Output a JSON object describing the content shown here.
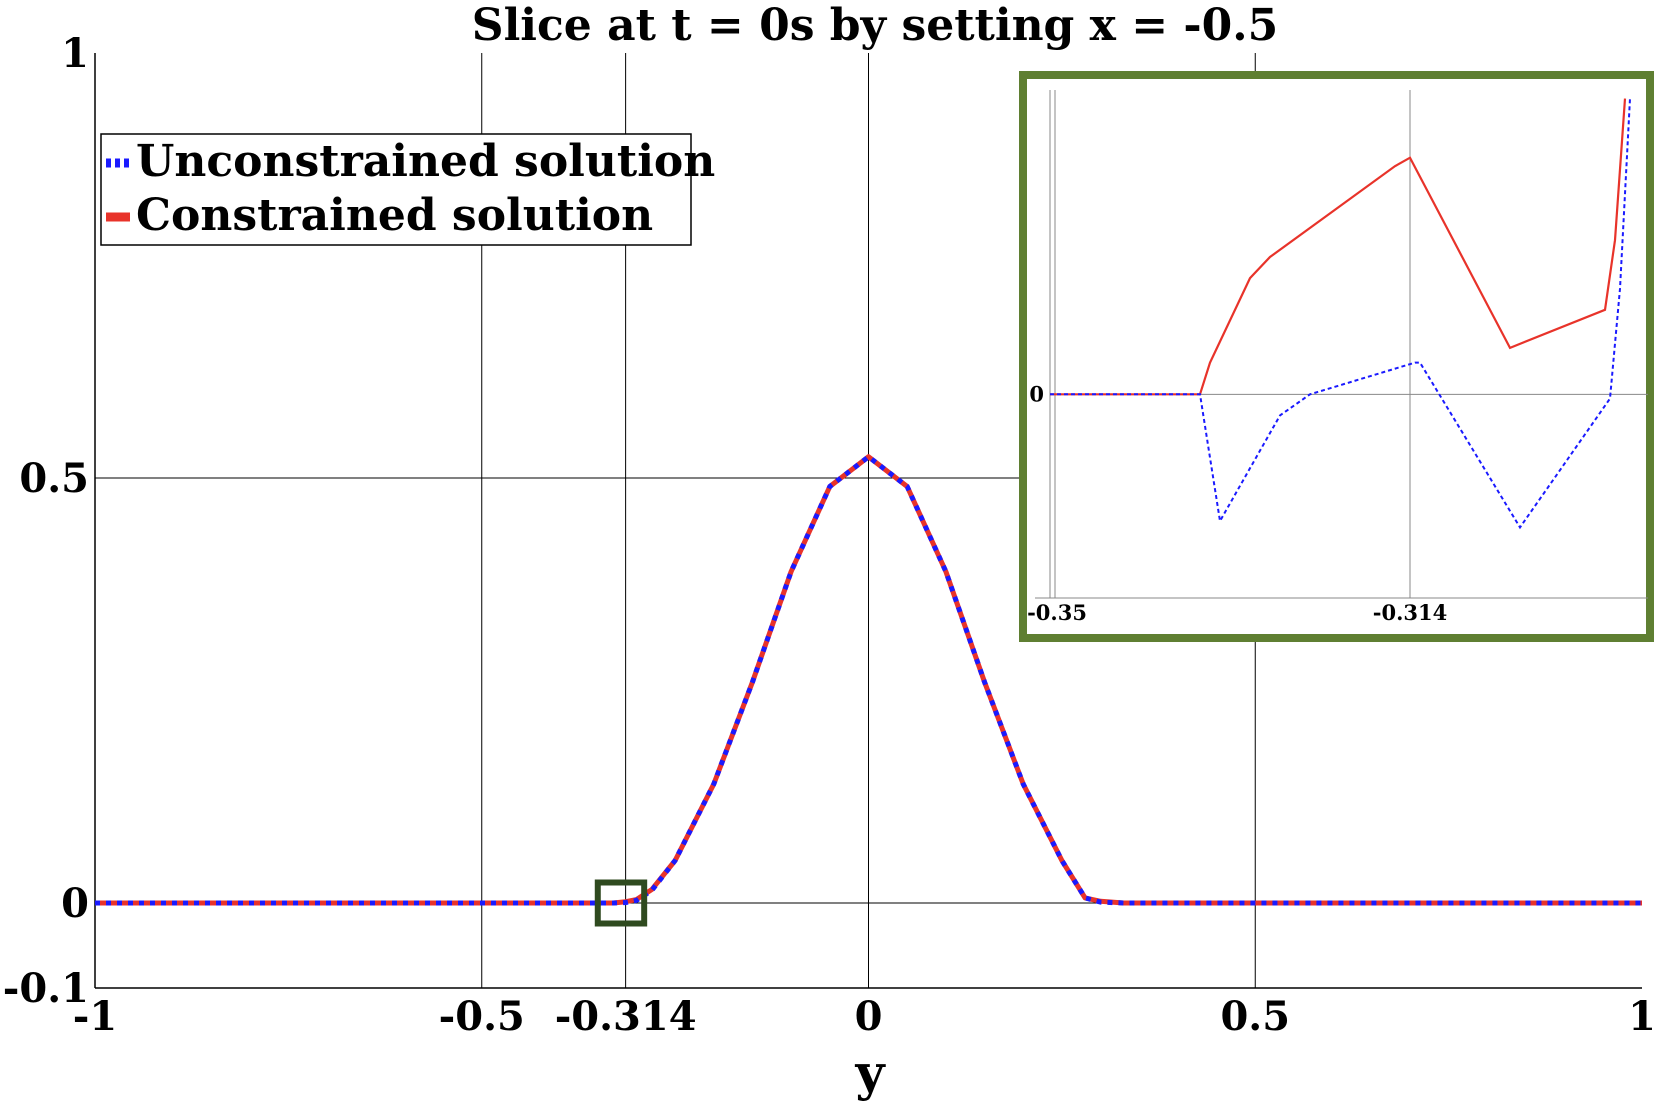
{
  "chart_data": {
    "type": "line",
    "title": "Slice at t = 0s by setting x = -0.5",
    "xlabel": "y",
    "ylabel": "",
    "xlim": [
      -1,
      1
    ],
    "ylim": [
      -0.1,
      1
    ],
    "grid": true,
    "legend": "top-left",
    "x_ticks": [
      -1,
      -0.5,
      -0.314,
      0,
      0.5,
      1
    ],
    "x_tick_labels": [
      "-1",
      "-0.5",
      "-0.314",
      "0",
      "0.5",
      "1"
    ],
    "y_ticks": [
      -0.1,
      0,
      0.5,
      1
    ],
    "y_tick_labels": [
      "-0.1",
      "0",
      "0.5",
      "1"
    ],
    "series": [
      {
        "name": "Unconstrained solution",
        "color": "#1a1aff",
        "style": "dotted",
        "x": [
          -1,
          -0.33,
          -0.314,
          -0.3,
          -0.28,
          -0.25,
          -0.2,
          -0.15,
          -0.1,
          -0.05,
          0,
          0.05,
          0.1,
          0.15,
          0.2,
          0.25,
          0.28,
          0.3,
          0.33,
          1
        ],
        "y": [
          0,
          0,
          0.0005,
          0.003,
          0.015,
          0.05,
          0.14,
          0.26,
          0.39,
          0.49,
          0.525,
          0.49,
          0.39,
          0.26,
          0.14,
          0.05,
          0.006,
          0.001,
          0,
          0
        ]
      },
      {
        "name": "Constrained solution",
        "color": "#e8332a",
        "style": "solid",
        "x": [
          -1,
          -0.33,
          -0.314,
          -0.3,
          -0.28,
          -0.25,
          -0.2,
          -0.15,
          -0.1,
          -0.05,
          0,
          0.05,
          0.1,
          0.15,
          0.2,
          0.25,
          0.28,
          0.3,
          0.33,
          1
        ],
        "y": [
          0,
          0,
          0.0015,
          0.004,
          0.016,
          0.05,
          0.14,
          0.26,
          0.39,
          0.49,
          0.525,
          0.49,
          0.39,
          0.26,
          0.14,
          0.05,
          0.006,
          0.002,
          0,
          0
        ]
      }
    ],
    "zoom_box": {
      "x": [
        -0.35,
        -0.29
      ],
      "y": [
        -0.01,
        0.01
      ]
    },
    "inset": {
      "x_ticks": [
        -0.35,
        -0.314
      ],
      "x_tick_labels": [
        "-0.35",
        "-0.314"
      ],
      "y_ticks": [
        0
      ],
      "y_tick_labels": [
        "0"
      ],
      "series": [
        {
          "name": "Unconstrained solution",
          "x": [
            -0.35,
            -0.335,
            -0.333,
            -0.327,
            -0.324,
            -0.3135,
            -0.313,
            -0.303,
            -0.294,
            -0.293,
            -0.292
          ],
          "y": [
            0,
            0,
            -0.6,
            -0.1,
            0,
            0.15,
            0.15,
            -0.63,
            -0.02,
            0.5,
            1.4
          ]
        },
        {
          "name": "Constrained solution",
          "x": [
            -0.35,
            -0.335,
            -0.334,
            -0.33,
            -0.328,
            -0.3155,
            -0.314,
            -0.304,
            -0.2945,
            -0.2935,
            -0.2925
          ],
          "y": [
            0,
            0,
            0.15,
            0.55,
            0.65,
            1.08,
            1.12,
            0.22,
            0.4,
            0.73,
            1.4
          ]
        }
      ]
    }
  }
}
